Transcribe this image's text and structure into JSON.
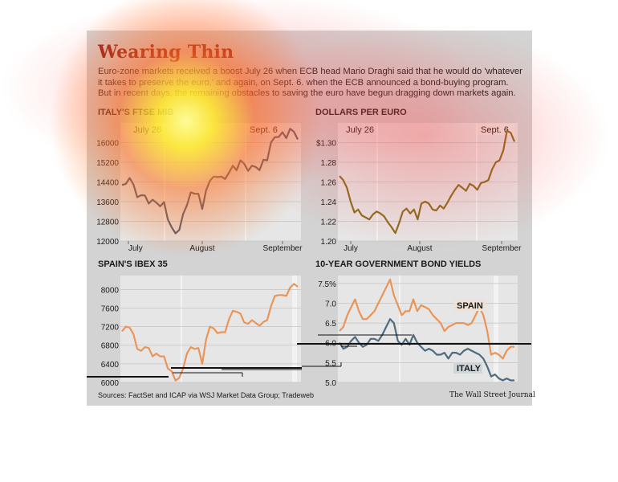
{
  "header": {
    "title": "Wearing Thin",
    "intro": "Euro-zone markets received a boost July 26 when ECB head Mario Draghi said that he would do 'whatever it takes to preserve the euro,' and again, on Sept. 6. when the ECB announced a bond-buying program. But in recent days, the remaining obstacles to saving the euro have begun dragging down markets again."
  },
  "footer": {
    "sources": "Sources: FactSet and ICAP via WSJ Market Data Group; Tradeweb",
    "credit": "The Wall Street Journal"
  },
  "colors": {
    "accent": "#8a1a14",
    "spain": "#e8955a",
    "italy": "#4f6b7c",
    "euro": "#8a6d1c",
    "ftse": "#4d5a6e"
  },
  "chart_data": [
    {
      "type": "line",
      "title": "ITALY'S FTSE MIB",
      "x_tick_labels": [
        "July",
        "August",
        "September"
      ],
      "y_ticks": [
        "12000",
        "12800",
        "13600",
        "14400",
        "15200",
        "16000"
      ],
      "ylim": [
        12000,
        16800
      ],
      "event_labels": [
        "July 26",
        "Sept. 6"
      ],
      "series": [
        {
          "values": [
            14280,
            14320,
            14560,
            14300,
            13780,
            13860,
            13850,
            13520,
            13680,
            13560,
            13410,
            13580,
            12880,
            12560,
            12310,
            12450,
            13100,
            13450,
            13980,
            13920,
            13920,
            13300,
            14050,
            14450,
            14620,
            14600,
            14620,
            14520,
            14780,
            15060,
            14880,
            15280,
            15140,
            14850,
            15060,
            15010,
            14880,
            15300,
            15280,
            16010,
            16220,
            16230,
            16420,
            16180,
            16560,
            16440,
            16130
          ]
        }
      ]
    },
    {
      "type": "line",
      "title": "DOLLARS PER EURO",
      "x_tick_labels": [
        "July",
        "August",
        "September"
      ],
      "y_ticks": [
        "1.20",
        "1.22",
        "1.24",
        "1.26",
        "1.28",
        "$1.30"
      ],
      "ylim": [
        1.2,
        1.32
      ],
      "event_labels": [
        "July 26",
        "Sept. 6"
      ],
      "series": [
        {
          "values": [
            1.266,
            1.262,
            1.254,
            1.24,
            1.229,
            1.232,
            1.226,
            1.224,
            1.222,
            1.227,
            1.23,
            1.228,
            1.225,
            1.219,
            1.214,
            1.208,
            1.218,
            1.23,
            1.233,
            1.228,
            1.232,
            1.222,
            1.238,
            1.24,
            1.238,
            1.232,
            1.231,
            1.236,
            1.233,
            1.239,
            1.246,
            1.252,
            1.257,
            1.254,
            1.251,
            1.258,
            1.256,
            1.252,
            1.259,
            1.26,
            1.262,
            1.273,
            1.28,
            1.282,
            1.292,
            1.312,
            1.31,
            1.301
          ]
        }
      ]
    },
    {
      "type": "line",
      "title": "SPAIN'S IBEX 35",
      "y_ticks": [
        "6000",
        "6400",
        "6800",
        "7200",
        "7600",
        "8000"
      ],
      "ylim": [
        6000,
        8300
      ],
      "series": [
        {
          "values": [
            7100,
            7200,
            7180,
            7040,
            6720,
            6680,
            6760,
            6740,
            6560,
            6620,
            6560,
            6560,
            6300,
            6240,
            6040,
            6100,
            6300,
            6620,
            6760,
            6720,
            6740,
            6400,
            6920,
            7200,
            7160,
            7060,
            7080,
            7080,
            7360,
            7540,
            7520,
            7480,
            7290,
            7260,
            7340,
            7280,
            7220,
            7300,
            7340,
            7640,
            7860,
            7880,
            7880,
            7860,
            8040,
            8120,
            8060
          ]
        }
      ]
    },
    {
      "type": "line",
      "title": "10-YEAR GOVERNMENT BOND YIELDS",
      "y_ticks": [
        "5.0",
        "5.5",
        "6.0",
        "6.5",
        "7.0",
        "7.5%"
      ],
      "ylim": [
        5.0,
        7.7
      ],
      "series": [
        {
          "name": "SPAIN",
          "values": [
            6.3,
            6.4,
            6.7,
            6.9,
            7.1,
            6.8,
            6.6,
            6.6,
            6.7,
            6.8,
            7.0,
            7.2,
            7.4,
            7.6,
            7.2,
            6.95,
            6.7,
            6.8,
            6.8,
            7.1,
            6.8,
            6.95,
            6.9,
            6.85,
            6.7,
            6.6,
            6.5,
            6.3,
            6.4,
            6.45,
            6.5,
            6.5,
            6.5,
            6.45,
            6.5,
            6.7,
            6.9,
            6.7,
            6.3,
            5.7,
            5.75,
            5.7,
            5.6,
            5.8,
            5.9,
            5.9
          ]
        },
        {
          "name": "ITALY",
          "values": [
            6.0,
            5.85,
            5.9,
            6.05,
            6.15,
            6.0,
            5.9,
            5.95,
            6.1,
            6.1,
            6.05,
            6.2,
            6.4,
            6.6,
            6.5,
            6.05,
            5.95,
            6.1,
            5.95,
            6.2,
            6.0,
            5.9,
            5.8,
            5.85,
            5.8,
            5.7,
            5.7,
            5.75,
            5.6,
            5.75,
            5.75,
            5.7,
            5.8,
            5.85,
            5.8,
            5.75,
            5.7,
            5.6,
            5.4,
            5.15,
            5.2,
            5.1,
            5.05,
            5.1,
            5.05,
            5.05
          ]
        }
      ]
    }
  ]
}
